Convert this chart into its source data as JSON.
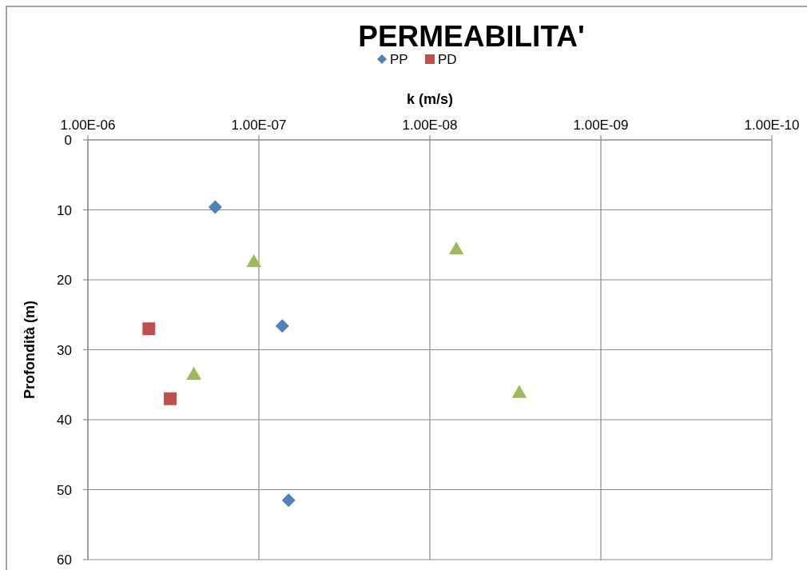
{
  "chart_data": {
    "type": "scatter",
    "title": "PERMEABILITA'",
    "xlabel": "k (m/s)",
    "ylabel": "Profondità (m)",
    "log": "x",
    "grid": true,
    "legend": "top",
    "xlim": [
      1e-06,
      1e-10
    ],
    "xticks": [
      {
        "value": 1e-06,
        "label": "1.00E-06"
      },
      {
        "value": 1e-07,
        "label": "1.00E-07"
      },
      {
        "value": 1e-08,
        "label": "1.00E-08"
      },
      {
        "value": 1e-09,
        "label": "1.00E-09"
      },
      {
        "value": 1e-10,
        "label": "1.00E-10"
      }
    ],
    "ylim": [
      60,
      0
    ],
    "yticks": [
      0,
      10,
      20,
      30,
      40,
      50,
      60
    ],
    "series": [
      {
        "name": "PP",
        "color": "#4f81bd",
        "marker": "diamond",
        "x": [
          1.8e-07,
          7.3e-08,
          6.7e-08
        ],
        "values": [
          9.6,
          26.6,
          51.5
        ]
      },
      {
        "name": "PD",
        "color": "#c0504d",
        "marker": "square",
        "x": [
          4.4e-07,
          3.3e-07
        ],
        "values": [
          27.0,
          37.0
        ]
      },
      {
        "color": "#9bbb59",
        "marker": "triangle",
        "x": [
          1.07e-07,
          2.4e-07,
          7e-09,
          3e-09
        ],
        "values": [
          17.3,
          33.4,
          15.5,
          36.0
        ]
      }
    ]
  }
}
